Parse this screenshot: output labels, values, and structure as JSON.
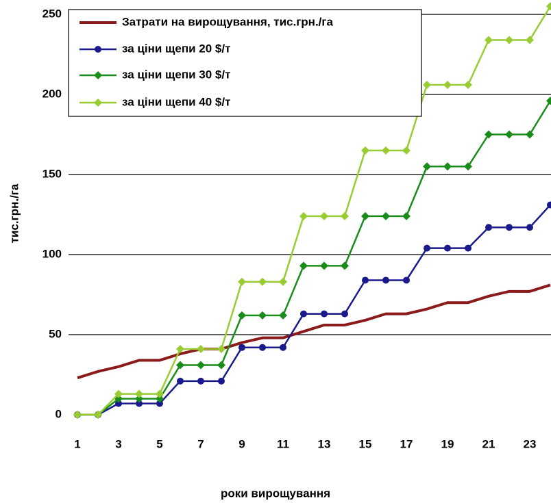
{
  "chart_data": {
    "type": "line",
    "x_label": "роки вирощування",
    "y_label": "тис.грн./га",
    "x": [
      1,
      2,
      3,
      4,
      5,
      6,
      7,
      8,
      9,
      10,
      11,
      12,
      13,
      14,
      15,
      16,
      17,
      18,
      19,
      20,
      21,
      22,
      23,
      24
    ],
    "xlim": [
      0.5,
      24.5
    ],
    "xticks": [
      1,
      3,
      5,
      7,
      9,
      11,
      13,
      15,
      17,
      19,
      21,
      23
    ],
    "ylim": [
      0,
      250
    ],
    "yticks": [
      0,
      50,
      100,
      150,
      200,
      250
    ],
    "grid": true,
    "legend": "upper left",
    "series": [
      {
        "name": "Затрати на вирощування, тис.грн./га",
        "color": "#8b1a1a",
        "marker": "none",
        "values": [
          23,
          27,
          30,
          34,
          34,
          38,
          41,
          41,
          45,
          48,
          48,
          52,
          56,
          56,
          59,
          63,
          63,
          66,
          70,
          70,
          74,
          77,
          77,
          81
        ]
      },
      {
        "name": "за ціни щепи 20 $/т",
        "color": "#1a1a8c",
        "marker": "circle",
        "values": [
          0,
          0,
          7,
          7,
          7,
          21,
          21,
          21,
          42,
          42,
          42,
          63,
          63,
          63,
          84,
          84,
          84,
          104,
          104,
          104,
          117,
          117,
          117,
          131
        ]
      },
      {
        "name": "за ціни щепи 30 $/т",
        "color": "#1a8c1a",
        "marker": "diamond",
        "values": [
          0,
          0,
          10,
          10,
          10,
          31,
          31,
          31,
          62,
          62,
          62,
          93,
          93,
          93,
          124,
          124,
          124,
          155,
          155,
          155,
          175,
          175,
          175,
          196
        ]
      },
      {
        "name": "за ціни щепи 40 $/т",
        "color": "#99cc33",
        "marker": "diamond",
        "values": [
          0,
          0,
          13,
          13,
          13,
          41,
          41,
          41,
          83,
          83,
          83,
          124,
          124,
          124,
          165,
          165,
          165,
          206,
          206,
          206,
          234,
          234,
          234,
          255
        ]
      }
    ]
  }
}
